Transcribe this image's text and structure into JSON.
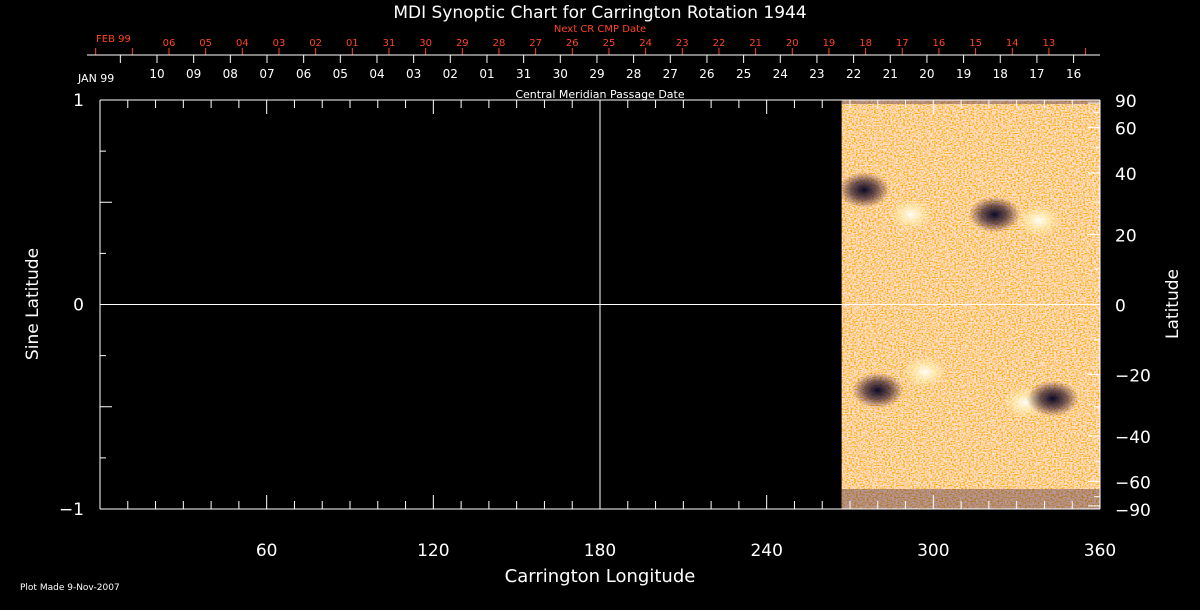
{
  "chart_data": {
    "type": "heatmap",
    "title": "MDI Synoptic Chart for Carrington Rotation 1944",
    "xlabel": "Carrington Longitude",
    "ylabel_left": "Sine Latitude",
    "ylabel_right": "Latitude",
    "xlim": [
      0,
      360
    ],
    "ylim": [
      -1,
      1
    ],
    "x_ticks": [
      60,
      120,
      180,
      240,
      300,
      360
    ],
    "y_ticks_left": [
      1,
      0,
      -1
    ],
    "y_ticks_left_labels": [
      "1",
      "0",
      "−1"
    ],
    "y_ticks_right": [
      90,
      60,
      40,
      20,
      0,
      -20,
      -40,
      -60,
      -90
    ],
    "y_ticks_right_labels": [
      "90",
      "60",
      "40",
      "20",
      "0",
      "−20",
      "−40",
      "−60",
      "−90"
    ],
    "grid_lines": {
      "x": [
        180
      ],
      "y": [
        0
      ]
    },
    "data_coverage_longitude": [
      267,
      360
    ],
    "cmp_dates": {
      "label": "Central Meridian Passage Date",
      "start_label": "JAN 99",
      "days": [
        "10",
        "09",
        "08",
        "07",
        "06",
        "05",
        "04",
        "03",
        "02",
        "01",
        "31",
        "30",
        "29",
        "28",
        "27",
        "26",
        "25",
        "24",
        "23",
        "22",
        "21",
        "20",
        "19",
        "18",
        "17",
        "16"
      ]
    },
    "next_cmp_dates": {
      "label": "Next CR CMP Date",
      "start_label": "FEB 99",
      "days": [
        "06",
        "05",
        "04",
        "03",
        "02",
        "01",
        "31",
        "30",
        "29",
        "28",
        "27",
        "26",
        "25",
        "24",
        "23",
        "22",
        "21",
        "20",
        "19",
        "18",
        "17",
        "16",
        "15",
        "14",
        "13"
      ]
    },
    "features": [
      {
        "polarity": "positive",
        "lon": 292,
        "lat_sine": 0.44
      },
      {
        "polarity": "negative",
        "lon": 275,
        "lat_sine": 0.56
      },
      {
        "polarity": "negative",
        "lon": 322,
        "lat_sine": 0.44
      },
      {
        "polarity": "positive",
        "lon": 338,
        "lat_sine": 0.41
      },
      {
        "polarity": "negative",
        "lon": 280,
        "lat_sine": -0.42
      },
      {
        "polarity": "positive",
        "lon": 297,
        "lat_sine": -0.33
      },
      {
        "polarity": "positive",
        "lon": 333,
        "lat_sine": -0.48
      },
      {
        "polarity": "negative",
        "lon": 343,
        "lat_sine": -0.46
      }
    ]
  },
  "footer": {
    "plot_made": "Plot Made  9-Nov-2007"
  },
  "colors": {
    "background": "#000000",
    "axes": "#ffffff",
    "next_cmp": "#ff4422",
    "map_base": "#ff5500"
  }
}
